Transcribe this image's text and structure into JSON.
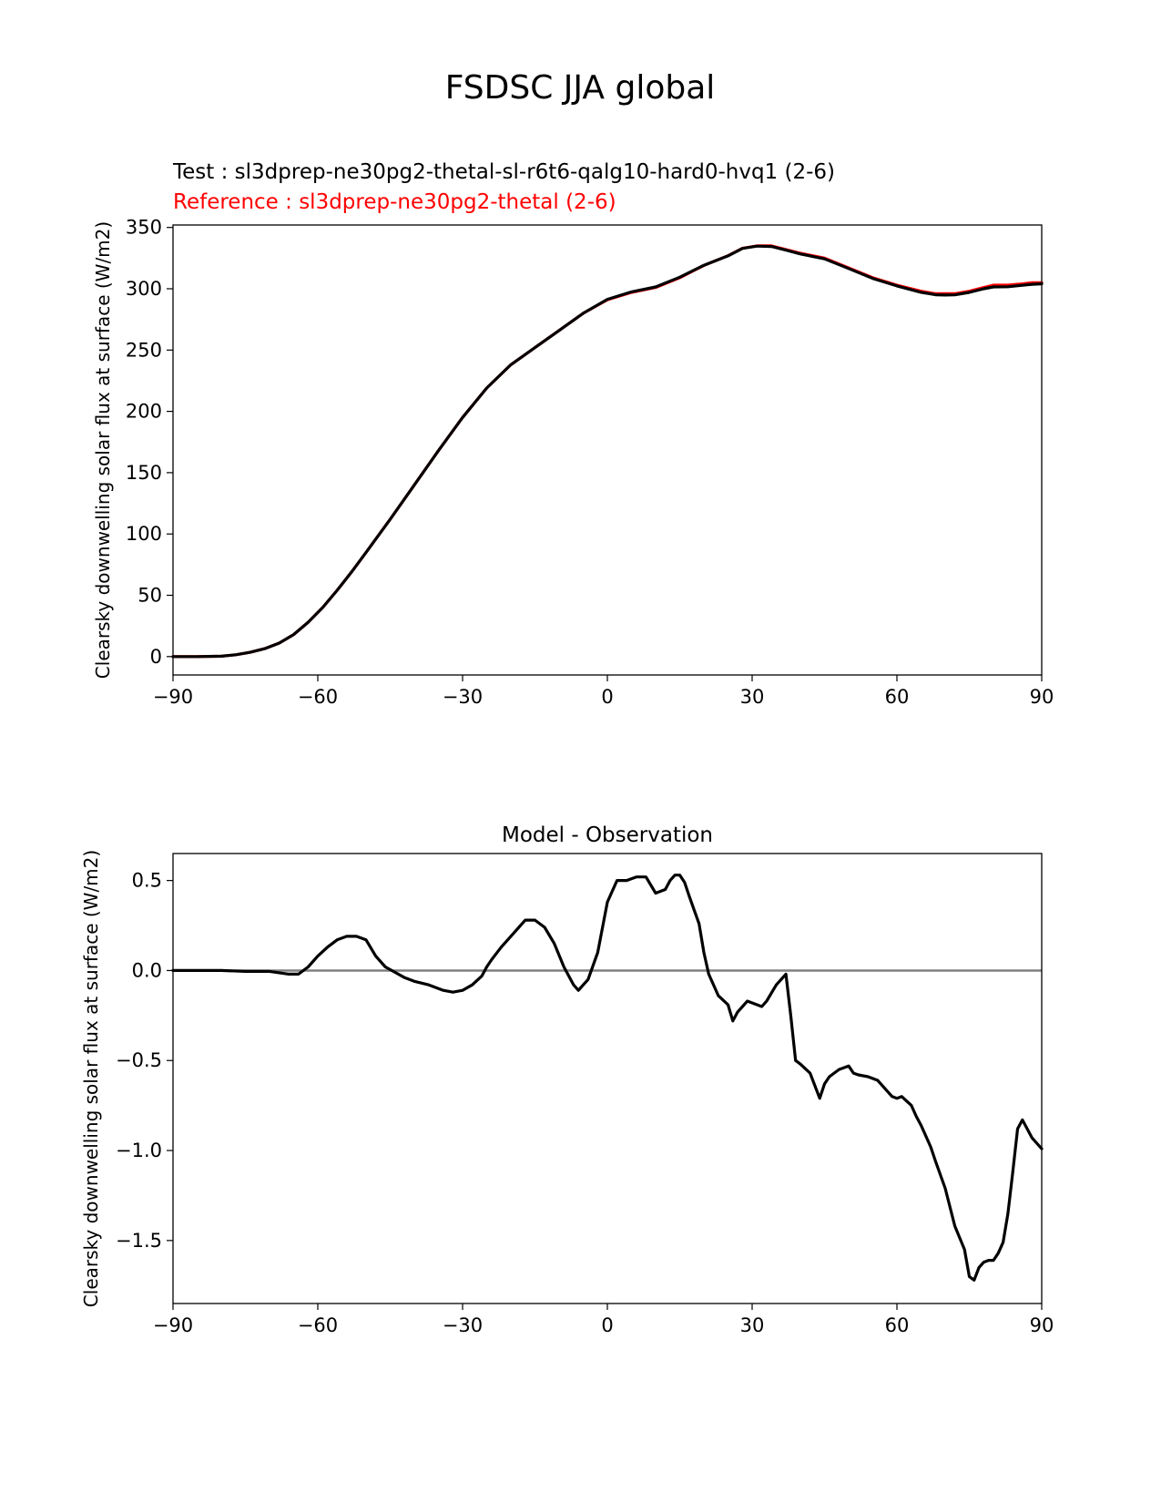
{
  "figure": {
    "title": "FSDSC JJA global",
    "colors": {
      "test": "#000000",
      "reference": "#ff0000",
      "diff": "#000000",
      "zero_line": "#808080"
    }
  },
  "chart_data": [
    {
      "type": "line",
      "subtitle_test": "Test : sl3dprep-ne30pg2-thetal-sl-r6t6-qalg10-hard0-hvq1 (2-6)",
      "subtitle_reference": "Reference : sl3dprep-ne30pg2-thetal (2-6)",
      "xlabel": "",
      "ylabel": "Clearsky downwelling solar flux at surface (W/m2)",
      "xlim": [
        -90,
        90
      ],
      "ylim": [
        -15,
        352
      ],
      "xticks": [
        -90,
        -60,
        -30,
        0,
        30,
        60,
        90
      ],
      "xtick_labels": [
        "−90",
        "−60",
        "−30",
        "0",
        "30",
        "60",
        "90"
      ],
      "yticks": [
        0,
        50,
        100,
        150,
        200,
        250,
        300,
        350
      ],
      "ytick_labels": [
        "0",
        "50",
        "100",
        "150",
        "200",
        "250",
        "300",
        "350"
      ],
      "series": [
        {
          "key": "reference",
          "x": [
            -90,
            -85,
            -80,
            -77,
            -74,
            -71,
            -68,
            -65,
            -62,
            -59,
            -56,
            -53,
            -50,
            -45,
            -40,
            -35,
            -30,
            -25,
            -20,
            -15,
            -10,
            -5,
            0,
            5,
            10,
            15,
            20,
            25,
            28,
            31,
            34,
            37,
            40,
            45,
            50,
            55,
            60,
            65,
            68,
            70,
            72,
            75,
            78,
            80,
            83,
            86,
            88,
            90
          ],
          "y": [
            0,
            0,
            0.3,
            1.5,
            3.5,
            6.5,
            11,
            18,
            28,
            40,
            54,
            69,
            85,
            112,
            140,
            168,
            195,
            219,
            238,
            252,
            266,
            280,
            291,
            297,
            301,
            309,
            319,
            327,
            333,
            335,
            335,
            332,
            329,
            325,
            317,
            309,
            303,
            298,
            296,
            296,
            296,
            298,
            301,
            303,
            303,
            304,
            305,
            305
          ]
        },
        {
          "key": "test",
          "x": [
            -90,
            -85,
            -80,
            -77,
            -74,
            -71,
            -68,
            -65,
            -62,
            -59,
            -56,
            -53,
            -50,
            -45,
            -40,
            -35,
            -30,
            -25,
            -20,
            -15,
            -10,
            -5,
            0,
            5,
            10,
            15,
            20,
            25,
            28,
            31,
            34,
            37,
            40,
            45,
            50,
            55,
            60,
            65,
            68,
            70,
            72,
            75,
            78,
            80,
            83,
            86,
            88,
            90
          ],
          "y": [
            0,
            0,
            0.3,
            1.5,
            3.5,
            6.5,
            11,
            18,
            28,
            40,
            54,
            69,
            85,
            112,
            140,
            168,
            195,
            219,
            238,
            252,
            266,
            280,
            291.4,
            297.5,
            301.5,
            309.4,
            319.2,
            326.8,
            332.9,
            334.8,
            334.5,
            331.5,
            328.4,
            324.4,
            316.5,
            308.4,
            302.3,
            297.1,
            295.1,
            294.9,
            295,
            297,
            300,
            301.5,
            301.6,
            302.8,
            303.6,
            304
          ]
        }
      ]
    },
    {
      "type": "line",
      "title": "Model - Observation",
      "xlabel": "",
      "ylabel": "Clearsky downwelling solar flux at surface (W/m2)",
      "xlim": [
        -90,
        90
      ],
      "ylim": [
        -1.85,
        0.65
      ],
      "xticks": [
        -90,
        -60,
        -30,
        0,
        30,
        60,
        90
      ],
      "xtick_labels": [
        "−90",
        "−60",
        "−30",
        "0",
        "30",
        "60",
        "90"
      ],
      "yticks": [
        0.5,
        0.0,
        -0.5,
        -1.0,
        -1.5
      ],
      "ytick_labels": [
        "0.5",
        "0.0",
        "−0.5",
        "−1.0",
        "−1.5"
      ],
      "zero_line": 0,
      "series": [
        {
          "key": "diff",
          "x": [
            -90,
            -80,
            -75,
            -70,
            -66,
            -64,
            -62,
            -60,
            -58,
            -56,
            -54,
            -52,
            -50,
            -48,
            -46,
            -44,
            -42,
            -40,
            -37,
            -34,
            -32,
            -30,
            -28,
            -26,
            -25,
            -24,
            -22,
            -20,
            -18,
            -17,
            -15,
            -13,
            -11,
            -9,
            -7,
            -6,
            -5,
            -4,
            -2,
            0,
            2,
            4,
            6,
            8,
            10,
            11,
            12,
            13,
            14,
            15,
            16,
            17,
            19,
            20,
            21,
            23,
            25,
            26,
            27,
            28,
            29,
            31,
            32,
            33,
            35,
            37,
            38,
            39,
            40,
            42,
            44,
            45,
            46,
            48,
            50,
            51,
            52,
            54,
            56,
            57,
            59,
            60,
            61,
            63,
            64,
            65,
            67,
            68,
            70,
            72,
            74,
            75,
            76,
            77,
            78,
            79,
            80,
            81,
            82,
            83,
            84,
            85,
            86,
            88,
            90
          ],
          "y": [
            0,
            0,
            -0.005,
            -0.005,
            -0.02,
            -0.02,
            0.02,
            0.08,
            0.13,
            0.17,
            0.19,
            0.19,
            0.17,
            0.08,
            0.02,
            -0.01,
            -0.04,
            -0.06,
            -0.08,
            -0.11,
            -0.12,
            -0.11,
            -0.08,
            -0.03,
            0.02,
            0.06,
            0.13,
            0.19,
            0.25,
            0.28,
            0.28,
            0.24,
            0.15,
            0.02,
            -0.08,
            -0.11,
            -0.08,
            -0.05,
            0.1,
            0.38,
            0.5,
            0.5,
            0.52,
            0.52,
            0.43,
            0.44,
            0.45,
            0.5,
            0.53,
            0.53,
            0.49,
            0.41,
            0.26,
            0.1,
            -0.02,
            -0.14,
            -0.19,
            -0.28,
            -0.23,
            -0.2,
            -0.17,
            -0.19,
            -0.2,
            -0.17,
            -0.08,
            -0.02,
            -0.25,
            -0.5,
            -0.52,
            -0.57,
            -0.71,
            -0.63,
            -0.59,
            -0.55,
            -0.53,
            -0.57,
            -0.58,
            -0.59,
            -0.61,
            -0.64,
            -0.7,
            -0.71,
            -0.7,
            -0.75,
            -0.81,
            -0.86,
            -0.98,
            -1.06,
            -1.21,
            -1.42,
            -1.55,
            -1.7,
            -1.72,
            -1.65,
            -1.62,
            -1.61,
            -1.61,
            -1.57,
            -1.51,
            -1.35,
            -1.12,
            -0.88,
            -0.83,
            -0.93,
            -0.99
          ]
        }
      ]
    }
  ]
}
